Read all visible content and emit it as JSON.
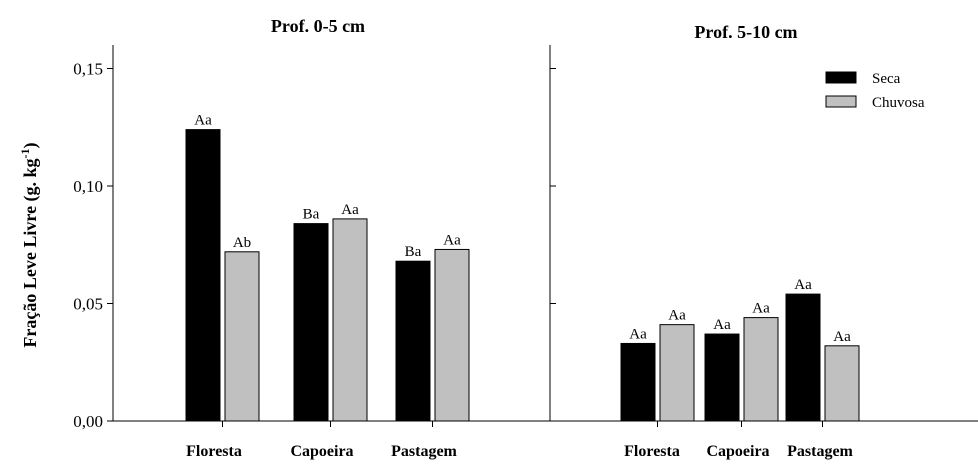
{
  "chart_data": {
    "type": "bar",
    "ylabel_main": "Fração Leve Livre (g. kg",
    "ylabel_exp": "-1",
    "ylabel_close": ")",
    "ylim": [
      0,
      0.16
    ],
    "yticks": [
      "0,00",
      "0,05",
      "0,10",
      "0,15"
    ],
    "ytick_values": [
      0,
      0.05,
      0.1,
      0.15
    ],
    "legend": {
      "placement": "top-right",
      "entries": [
        {
          "name": "Seca",
          "color": "#000000"
        },
        {
          "name": "Chuvosa",
          "color": "#c0c0c0"
        }
      ]
    },
    "panels": [
      {
        "title": "Prof. 0-5 cm",
        "categories": [
          "Floresta",
          "Capoeira",
          "Pastagem"
        ],
        "series": [
          {
            "name": "Seca",
            "values": [
              0.124,
              0.084,
              0.068
            ],
            "labels": [
              "Aa",
              "Ba",
              "Ba"
            ]
          },
          {
            "name": "Chuvosa",
            "values": [
              0.072,
              0.086,
              0.073
            ],
            "labels": [
              "Ab",
              "Aa",
              "Aa"
            ]
          }
        ]
      },
      {
        "title": "Prof. 5-10 cm",
        "categories": [
          "Floresta",
          "Capoeira",
          "Pastagem"
        ],
        "series": [
          {
            "name": "Seca",
            "values": [
              0.033,
              0.037,
              0.054
            ],
            "labels": [
              "Aa",
              "Aa",
              "Aa"
            ]
          },
          {
            "name": "Chuvosa",
            "values": [
              0.041,
              0.044,
              0.032
            ],
            "labels": [
              "Aa",
              "Aa",
              "Aa"
            ]
          }
        ]
      }
    ]
  }
}
